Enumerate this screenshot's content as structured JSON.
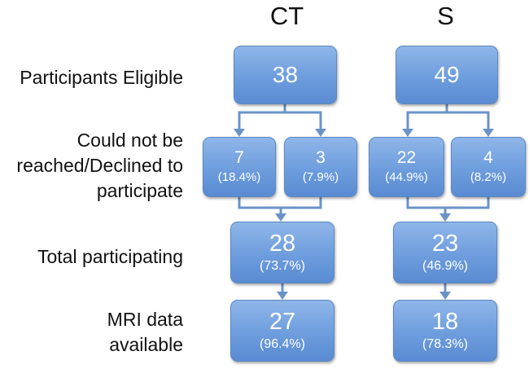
{
  "columns": {
    "ct": {
      "header": "CT"
    },
    "s": {
      "header": "S"
    }
  },
  "rows": {
    "eligible": {
      "label": [
        "Participants Eligible"
      ]
    },
    "declined": {
      "label": [
        "Could not be",
        "reached/Declined to",
        "participate"
      ]
    },
    "participating": {
      "label": [
        "Total participating"
      ]
    },
    "mri": {
      "label": [
        "MRI data",
        "available"
      ]
    }
  },
  "boxes": {
    "ct_eligible": {
      "value": "38"
    },
    "s_eligible": {
      "value": "49"
    },
    "ct_not_reached": {
      "value": "7",
      "pct": "(18.4%)"
    },
    "ct_declined": {
      "value": "3",
      "pct": "(7.9%)"
    },
    "s_not_reached": {
      "value": "22",
      "pct": "(44.9%)"
    },
    "s_declined": {
      "value": "4",
      "pct": "(8.2%)"
    },
    "ct_participating": {
      "value": "28",
      "pct": "(73.7%)"
    },
    "s_participating": {
      "value": "23",
      "pct": "(46.9%)"
    },
    "ct_mri": {
      "value": "27",
      "pct": "(96.4%)"
    },
    "s_mri": {
      "value": "18",
      "pct": "(78.3%)"
    }
  },
  "colors": {
    "box_fill_top": "#8fb6e9",
    "box_fill_bottom": "#5a8bd2",
    "arrow": "#6b93c9"
  }
}
